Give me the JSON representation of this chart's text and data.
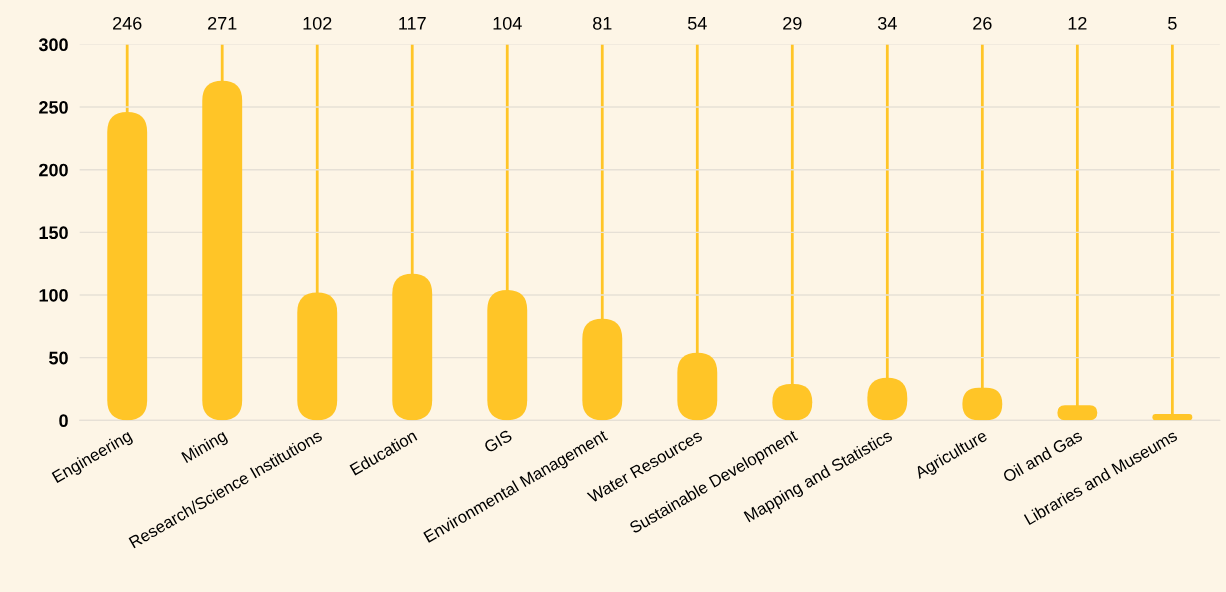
{
  "chart_data": {
    "type": "bar",
    "categories": [
      "Engineering",
      "Mining",
      "Research/Science Institutions",
      "Education",
      "GIS",
      "Environmental Management",
      "Water Resources",
      "Sustainable Development",
      "Mapping and Statistics",
      "Agriculture",
      "Oil and Gas",
      "Libraries and Museums"
    ],
    "values": [
      246,
      271,
      102,
      117,
      104,
      81,
      54,
      29,
      34,
      26,
      12,
      5
    ],
    "color": "#ffc527",
    "ylim": [
      0,
      300
    ],
    "yticks": [
      0,
      50,
      100,
      150,
      200,
      250,
      300
    ],
    "grid": true,
    "annotations": [
      "246",
      "271",
      "102",
      "117",
      "104",
      "81",
      "54",
      "29",
      "34",
      "26",
      "12",
      "5"
    ]
  }
}
